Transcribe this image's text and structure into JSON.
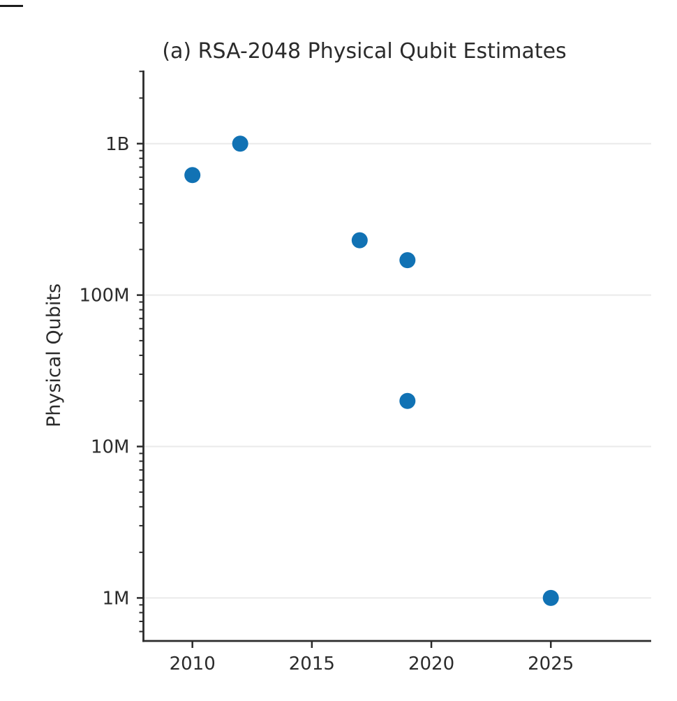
{
  "figure": {
    "title": "(a) RSA-2048 Physical Qubit Estimates",
    "ylabel": "Physical Qubits"
  },
  "chart_data": {
    "type": "scatter",
    "title": "(a) RSA-2048 Physical Qubit Estimates",
    "xlabel": "",
    "ylabel": "Physical Qubits",
    "y_scale": "log",
    "xlim": [
      2007.95,
      2029.2
    ],
    "ylim": [
      520000,
      3040000000
    ],
    "x_ticks": [
      {
        "value": 2010,
        "label": "2010"
      },
      {
        "value": 2015,
        "label": "2015"
      },
      {
        "value": 2020,
        "label": "2020"
      },
      {
        "value": 2025,
        "label": "2025"
      }
    ],
    "y_ticks": [
      {
        "value": 1000000,
        "label": "1M"
      },
      {
        "value": 10000000,
        "label": "10M"
      },
      {
        "value": 100000000,
        "label": "100M"
      },
      {
        "value": 1000000000,
        "label": "1B"
      }
    ],
    "grid": "horizontal-major-only",
    "legend": "none",
    "marker_color": "#1172b4",
    "axis_color": "#2b2b2b",
    "grid_color": "#eaeaea",
    "points": [
      {
        "year": 2010,
        "qubits": 620000000,
        "approx_label": "620M"
      },
      {
        "year": 2012,
        "qubits": 1000000000,
        "approx_label": "1B"
      },
      {
        "year": 2017,
        "qubits": 230000000,
        "approx_label": "230M"
      },
      {
        "year": 2019,
        "qubits": 170000000,
        "approx_label": "170M"
      },
      {
        "year": 2019,
        "qubits": 20000000,
        "approx_label": "20M"
      },
      {
        "year": 2025,
        "qubits": 1000000,
        "approx_label": "1M"
      }
    ]
  }
}
